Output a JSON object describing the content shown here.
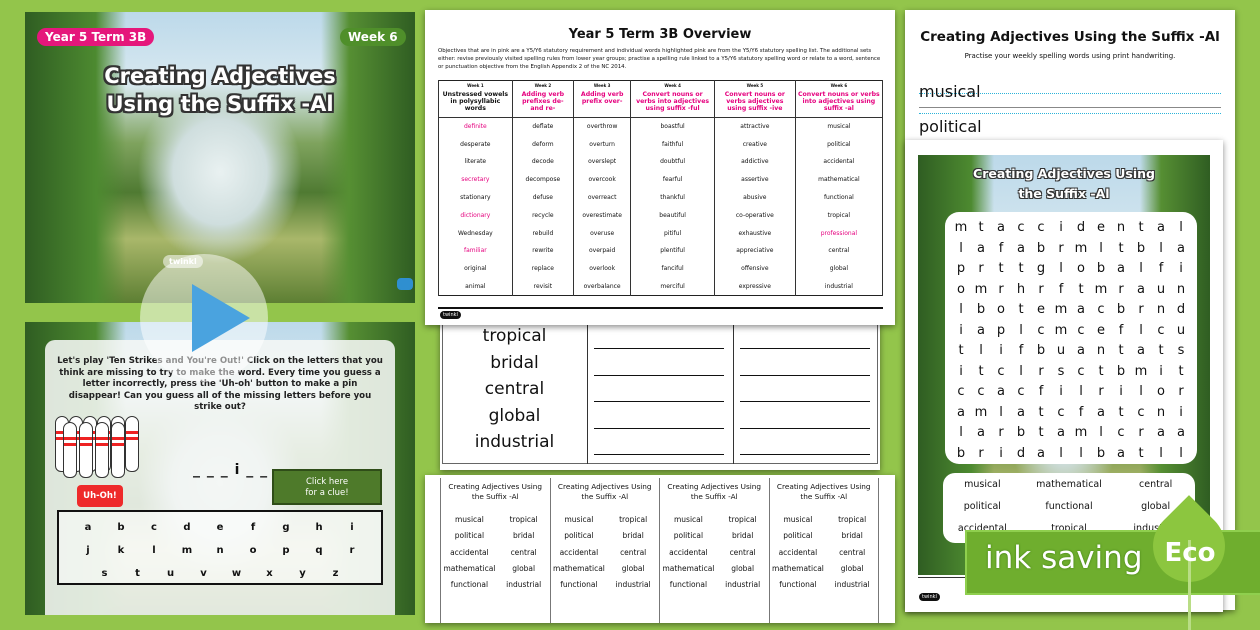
{
  "slide1": {
    "term_badge": "Year 5 Term 3B",
    "week_badge": "Week 6",
    "title_line1": "Creating Adjectives",
    "title_line2": "Using the Suffix -Al",
    "logo": "twinkl",
    "term_color": "#e5177b",
    "week_color": "#4f8f2a"
  },
  "slide2": {
    "instructions": "Let's play 'Ten Strikes and You're Out!' Click on the letters that you think are missing to try to make the word. Every time you guess a letter incorrectly, press the 'Uh-oh' button to make a pin disappear! Can you guess all of the missing letters before you strike out?",
    "word_blanks": "_ _ _ i _ _ _",
    "uh_oh_label": "Uh-Oh!",
    "clue_label_line1": "Click here",
    "clue_label_line2": "for a clue!",
    "keyboard_rows": [
      [
        "a",
        "b",
        "c",
        "d",
        "e",
        "f",
        "g",
        "h",
        "i"
      ],
      [
        "j",
        "k",
        "l",
        "m",
        "n",
        "o",
        "p",
        "q",
        "r"
      ],
      [
        "s",
        "t",
        "u",
        "v",
        "w",
        "x",
        "y",
        "z"
      ]
    ],
    "pin_count": 10,
    "play_icon": "play-icon"
  },
  "overview": {
    "title": "Year 5 Term 3B Overview",
    "intro": "Objectives that are in pink are a Y5/Y6 statutory requirement and individual words highlighted pink are from the Y5/Y6 statutory spelling list. The additional sets either: revise previously visited spelling rules from lower year groups; practise a spelling rule linked to a Y5/Y6 statutory spelling word or relate to a word, sentence or punctuation objective from the English Appendix 2 of the NC 2014.",
    "columns": [
      {
        "week": "Week 1",
        "heading": "Unstressed vowels in polysyllabic words",
        "heading_pink": false,
        "words": [
          "definite",
          "desperate",
          "literate",
          "secretary",
          "stationary",
          "dictionary",
          "Wednesday",
          "familiar",
          "original",
          "animal"
        ],
        "pink": [
          0,
          3,
          5,
          7
        ]
      },
      {
        "week": "Week 2",
        "heading": "Adding verb prefixes de- and re-",
        "heading_pink": true,
        "words": [
          "deflate",
          "deform",
          "decode",
          "decompose",
          "defuse",
          "recycle",
          "rebuild",
          "rewrite",
          "replace",
          "revisit"
        ],
        "pink": []
      },
      {
        "week": "Week 3",
        "heading": "Adding verb prefix over-",
        "heading_pink": true,
        "words": [
          "overthrow",
          "overturn",
          "overslept",
          "overcook",
          "overreact",
          "overestimate",
          "overuse",
          "overpaid",
          "overlook",
          "overbalance"
        ],
        "pink": []
      },
      {
        "week": "Week 4",
        "heading": "Convert nouns or verbs into adjectives using suffix -ful",
        "heading_pink": true,
        "words": [
          "boastful",
          "faithful",
          "doubtful",
          "fearful",
          "thankful",
          "beautiful",
          "pitiful",
          "plentiful",
          "fanciful",
          "merciful"
        ],
        "pink": []
      },
      {
        "week": "Week 5",
        "heading": "Convert nouns or verbs adjectives using suffix -ive",
        "heading_pink": true,
        "words": [
          "attractive",
          "creative",
          "addictive",
          "assertive",
          "abusive",
          "co-operative",
          "exhaustive",
          "appreciative",
          "offensive",
          "expressive"
        ],
        "pink": []
      },
      {
        "week": "Week 6",
        "heading": "Convert nouns or verbs into adjectives using suffix -al",
        "heading_pink": true,
        "words": [
          "musical",
          "political",
          "accidental",
          "mathematical",
          "functional",
          "tropical",
          "professional",
          "central",
          "global",
          "industrial"
        ],
        "pink": [
          6
        ]
      }
    ],
    "logo": "twinkl",
    "pink_color": "#e5007e"
  },
  "worksheet": {
    "words": [
      "tropical",
      "bridal",
      "central",
      "global",
      "industrial"
    ]
  },
  "bookmarks": {
    "title": "Creating Adjectives Using the Suffix -Al",
    "count": 4,
    "words": [
      "musical",
      "tropical",
      "political",
      "bridal",
      "accidental",
      "central",
      "mathematical",
      "global",
      "functional",
      "industrial"
    ]
  },
  "handwriting": {
    "title": "Creating Adjectives Using the Suffix -Al",
    "subtitle": "Practise your weekly spelling words using print handwriting.",
    "words": [
      "musical",
      "political"
    ]
  },
  "wordsearch": {
    "title_line1": "Creating Adjectives Using",
    "title_line2": "the Suffix -Al",
    "grid": [
      "mtaccidental",
      "lafabrmltbla",
      "prttglobalfi",
      "omrhrftmraun",
      "lbotemacbrnd",
      "iaplcmceflcu",
      "tlifbuantats",
      "itclrsctbmit",
      "ccacfilrilor",
      "amlatcfatcni",
      "larbtamlcraa",
      "bridallbatll"
    ],
    "word_list": [
      "musical",
      "mathematical",
      "central",
      "political",
      "functional",
      "global",
      "accidental",
      "tropical",
      "industrial"
    ],
    "logo": "twinkl"
  },
  "eco_banner": {
    "text": "ink saving",
    "badge": "Eco",
    "color": "#6fae2e"
  }
}
